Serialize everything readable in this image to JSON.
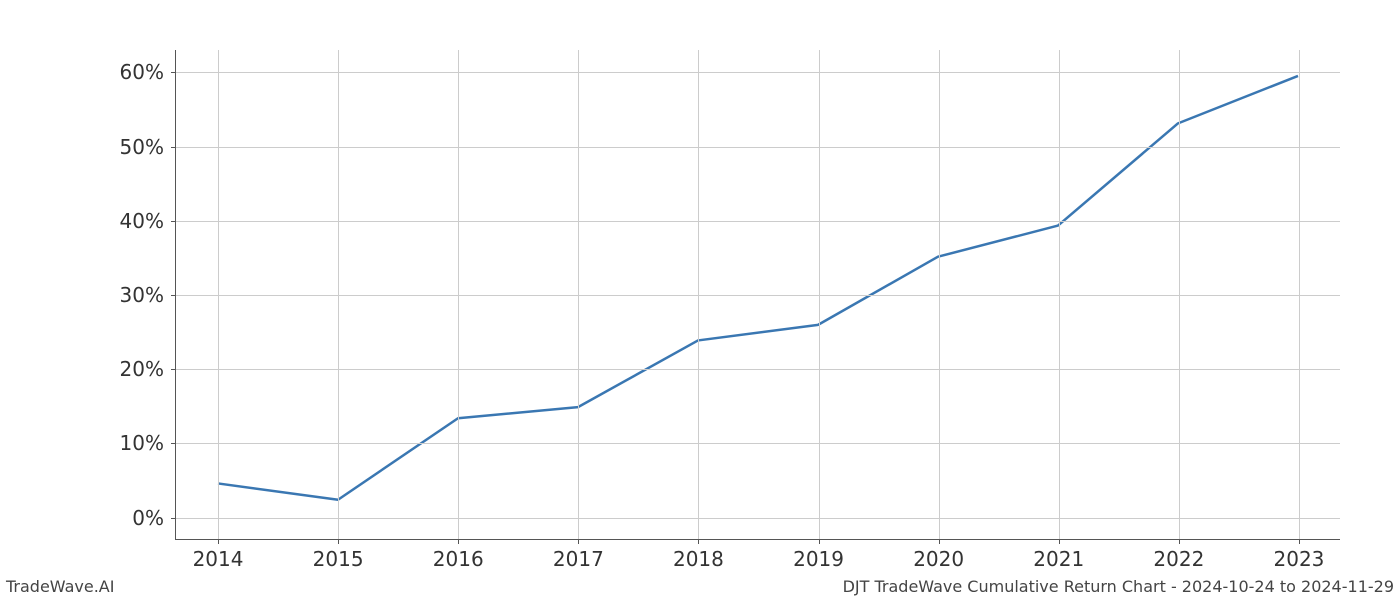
{
  "chart": {
    "type": "line",
    "background_color": "#ffffff",
    "grid_color": "#cccccc",
    "axis_color": "#555555",
    "tick_font_size": 20,
    "tick_color": "#333333",
    "line_color": "#3a77b2",
    "line_width": 2.5,
    "x": {
      "categories": [
        "2014",
        "2015",
        "2016",
        "2017",
        "2018",
        "2019",
        "2020",
        "2021",
        "2022",
        "2023"
      ],
      "tick_positions": [
        0,
        1,
        2,
        3,
        4,
        5,
        6,
        7,
        8,
        9
      ],
      "lim": [
        -0.35,
        9.35
      ]
    },
    "y": {
      "tick_values": [
        0,
        10,
        20,
        30,
        40,
        50,
        60
      ],
      "tick_labels": [
        "0%",
        "10%",
        "20%",
        "30%",
        "40%",
        "50%",
        "60%"
      ],
      "lim": [
        -3,
        63
      ]
    },
    "series": [
      {
        "name": "cumulative_return",
        "x_values": [
          0,
          1,
          2,
          3,
          4,
          5,
          6,
          7,
          8,
          9
        ],
        "y_values": [
          4.5,
          2.3,
          13.3,
          14.8,
          23.8,
          25.9,
          35.1,
          39.3,
          53.1,
          59.5
        ]
      }
    ]
  },
  "footer": {
    "left": "TradeWave.AI",
    "right": "DJT TradeWave Cumulative Return Chart - 2024-10-24 to 2024-11-29"
  }
}
